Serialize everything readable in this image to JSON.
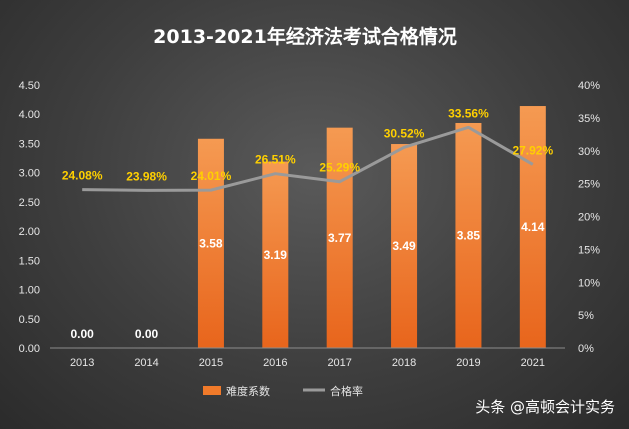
{
  "chart_data": {
    "type": "bar",
    "title": "2013-2021年经济法考试合格情况",
    "categories": [
      "2013",
      "2014",
      "2015",
      "2016",
      "2017",
      "2018",
      "2019",
      "2021"
    ],
    "series": [
      {
        "name": "难度系数",
        "type": "bar",
        "axis": "left",
        "color": "#f07a2a",
        "values": [
          0.0,
          0.0,
          3.58,
          3.19,
          3.77,
          3.49,
          3.85,
          4.14
        ],
        "labels": [
          "0.00",
          "0.00",
          "3.58",
          "3.19",
          "3.77",
          "3.49",
          "3.85",
          "4.14"
        ]
      },
      {
        "name": "合格率",
        "type": "line",
        "axis": "right",
        "color": "#9a9a9a",
        "values": [
          24.08,
          23.98,
          24.01,
          26.51,
          25.29,
          30.52,
          33.56,
          27.92
        ],
        "labels": [
          "24.08%",
          "23.98%",
          "24.01%",
          "26.51%",
          "25.29%",
          "30.52%",
          "33.56%",
          "27.92%"
        ]
      }
    ],
    "y_left": {
      "min": 0,
      "max": 4.5,
      "ticks": [
        "0.00",
        "0.50",
        "1.00",
        "1.50",
        "2.00",
        "2.50",
        "3.00",
        "3.50",
        "4.00",
        "4.50"
      ]
    },
    "y_right": {
      "min": 0,
      "max": 40,
      "ticks": [
        "0%",
        "5%",
        "10%",
        "15%",
        "20%",
        "25%",
        "30%",
        "35%",
        "40%"
      ]
    },
    "legend_position": "bottom",
    "grid": false
  },
  "credit": "头条 @高顿会计实务"
}
